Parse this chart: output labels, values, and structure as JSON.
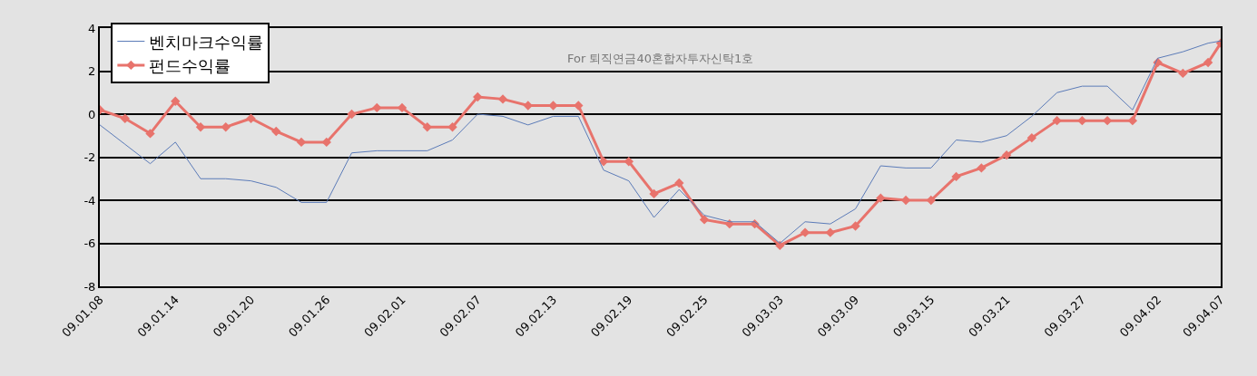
{
  "chart_data": {
    "type": "line",
    "x": [
      "--01-08",
      "--01-10",
      "--01-12",
      "--01-14",
      "--01-16",
      "--01-18",
      "--01-20",
      "--01-22",
      "--01-24",
      "--01-26",
      "--01-28",
      "--01-30",
      "--02-01",
      "--02-03",
      "--02-05",
      "--02-07",
      "--02-09",
      "--02-11",
      "--02-13",
      "--02-15",
      "--02-17",
      "--02-19",
      "--02-21",
      "--02-23",
      "--02-25",
      "--02-27",
      "--03-01",
      "--03-03",
      "--03-05",
      "--03-07",
      "--03-09",
      "--03-11",
      "--03-13",
      "--03-15",
      "--03-17",
      "--03-19",
      "--03-21",
      "--03-23",
      "--03-25",
      "--03-27",
      "--03-29",
      "--03-31",
      "--04-02",
      "--04-04",
      "--04-06",
      "--04-07"
    ],
    "series": [
      {
        "name": "벤치마크수익률",
        "color": "#5b7bb8",
        "marker": "none",
        "values": [
          -0.5,
          -1.4,
          -2.3,
          -1.3,
          -3.0,
          -3.0,
          -3.1,
          -3.4,
          -4.1,
          -4.1,
          -1.8,
          -1.7,
          -1.7,
          -1.7,
          -1.2,
          0.0,
          -0.1,
          -0.5,
          -0.1,
          -0.1,
          -2.6,
          -3.1,
          -4.8,
          -3.5,
          -4.7,
          -5.0,
          -5.0,
          -6.0,
          -5.0,
          -5.1,
          -4.4,
          -2.4,
          -2.5,
          -2.5,
          -1.2,
          -1.3,
          -1.0,
          -0.1,
          1.0,
          1.3,
          1.3,
          0.2,
          2.6,
          2.9,
          3.3,
          3.4
        ]
      },
      {
        "name": "펀드수익률",
        "color": "#e8736c",
        "marker": "diamond",
        "values": [
          0.2,
          -0.2,
          -0.9,
          0.6,
          -0.6,
          -0.6,
          -0.2,
          -0.8,
          -1.3,
          -1.3,
          0.0,
          0.3,
          0.3,
          -0.6,
          -0.6,
          0.8,
          0.7,
          0.4,
          0.4,
          0.4,
          -2.2,
          -2.2,
          -3.7,
          -3.2,
          -4.9,
          -5.1,
          -5.1,
          -6.1,
          -5.5,
          -5.5,
          -5.2,
          -3.9,
          -4.0,
          -4.0,
          -2.9,
          -2.5,
          -1.9,
          -1.1,
          -0.3,
          -0.3,
          -0.3,
          -0.3,
          2.4,
          1.9,
          2.4,
          3.3
        ]
      }
    ],
    "ylim": [
      -8,
      4
    ],
    "yticks": [
      -8,
      -6,
      -4,
      -2,
      0,
      2,
      4
    ],
    "xlim": [
      "--01-08",
      "--04-07"
    ],
    "xticks": [
      {
        "value": "--01-08",
        "label": "09.01.08"
      },
      {
        "value": "--01-14",
        "label": "09.01.14"
      },
      {
        "value": "--01-20",
        "label": "09.01.20"
      },
      {
        "value": "--01-26",
        "label": "09.01.26"
      },
      {
        "value": "--02-01",
        "label": "09.02.01"
      },
      {
        "value": "--02-07",
        "label": "09.02.07"
      },
      {
        "value": "--02-13",
        "label": "09.02.13"
      },
      {
        "value": "--02-19",
        "label": "09.02.19"
      },
      {
        "value": "--02-25",
        "label": "09.02.25"
      },
      {
        "value": "--03-03",
        "label": "09.03.03"
      },
      {
        "value": "--03-09",
        "label": "09.03.09"
      },
      {
        "value": "--03-15",
        "label": "09.03.15"
      },
      {
        "value": "--03-21",
        "label": "09.03.21"
      },
      {
        "value": "--03-27",
        "label": "09.03.27"
      },
      {
        "value": "--04-02",
        "label": "09.04.02"
      },
      {
        "value": "--04-07",
        "label": "09.04.07"
      }
    ],
    "grid": "y",
    "legend": "top left",
    "annotations": [
      "For 퇴직연금40혼합자투자신탁1호"
    ]
  }
}
